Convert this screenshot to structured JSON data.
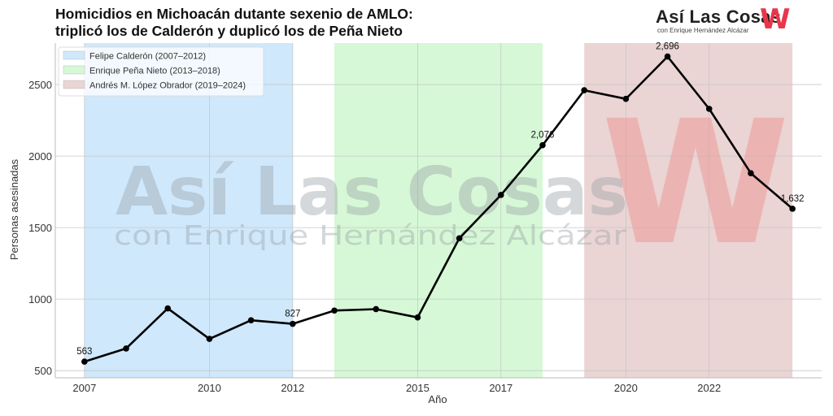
{
  "header": {
    "title_line1": "Homicidios en Michoacán dutante sexenio de AMLO:",
    "title_line2": "triplicó los de Calderón y duplicó los de Peña Nieto"
  },
  "logo": {
    "text": "Así Las Cosas",
    "mark": "W",
    "subtitle": "con Enrique Hernández Alcázar"
  },
  "watermark": {
    "line1": "Así Las Cosas",
    "line2": "con Enrique Hernández Alcázar",
    "mark": "W"
  },
  "chart_data": {
    "type": "line",
    "xlabel": "Año",
    "ylabel": "Personas asesinadas",
    "xlim": [
      2006.3,
      2024.7
    ],
    "ylim": [
      450,
      2790
    ],
    "grid": true,
    "legend_position": "top-left",
    "x_ticks": [
      2007,
      2010,
      2012,
      2015,
      2017,
      2020,
      2022
    ],
    "y_ticks": [
      500,
      1000,
      1500,
      2000,
      2500
    ],
    "series": [
      {
        "x": [
          2007,
          2008,
          2009,
          2010,
          2011,
          2012,
          2013,
          2014,
          2015,
          2016,
          2017,
          2018,
          2019,
          2020,
          2021,
          2022,
          2023,
          2024
        ],
        "values": [
          563,
          655,
          935,
          722,
          852,
          827,
          920,
          930,
          872,
          1425,
          1728,
          2076,
          2460,
          2400,
          2696,
          2330,
          1880,
          1632
        ],
        "color": "#000000"
      }
    ],
    "periods": [
      {
        "label": "Felipe Calderón (2007–2012)",
        "start": 2007,
        "end": 2012,
        "color": "#cfe8fb"
      },
      {
        "label": "Enrique Peña Nieto (2013–2018)",
        "start": 2013,
        "end": 2018,
        "color": "#d6f8d6"
      },
      {
        "label": "Andrés M. López Obrador (2019–2024)",
        "start": 2019,
        "end": 2024,
        "color": "#ead4d4"
      }
    ],
    "annotations": [
      {
        "x": 2007,
        "y": 563,
        "text": "563"
      },
      {
        "x": 2012,
        "y": 827,
        "text": "827"
      },
      {
        "x": 2018,
        "y": 2076,
        "text": "2,076"
      },
      {
        "x": 2021,
        "y": 2696,
        "text": "2,696"
      },
      {
        "x": 2024,
        "y": 1632,
        "text": "1,632"
      }
    ]
  }
}
